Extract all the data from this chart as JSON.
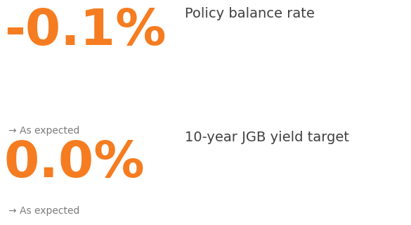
{
  "bg_color": "#ffffff",
  "orange_color": "#f57c20",
  "dark_text_color": "#404040",
  "arrow_color": "#7a7a7a",
  "value1": "-0.1%",
  "label1": "Policy balance rate",
  "tag1": "→ As expected",
  "value2": "0.0%",
  "label2": "10-year JGB yield target",
  "tag2": "→ As expected",
  "value_fontsize": 52,
  "label_fontsize": 14,
  "tag_fontsize": 10,
  "figsize": [
    5.85,
    3.2
  ],
  "dpi": 100
}
